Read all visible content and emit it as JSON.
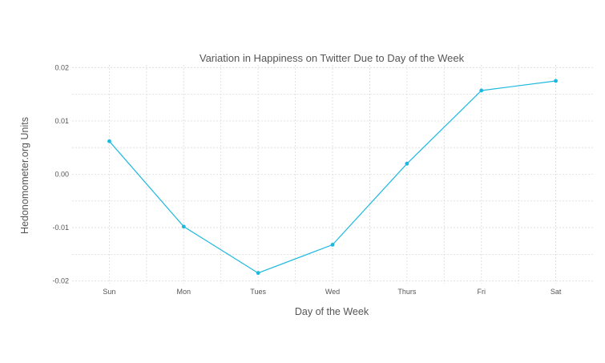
{
  "chart_data": {
    "type": "line",
    "title": "Variation in Happiness on Twitter Due to Day of the Week",
    "xlabel": "Day of the Week",
    "ylabel": "Hedonomometer.org Units",
    "categories": [
      "Sun",
      "Mon",
      "Tues",
      "Wed",
      "Thurs",
      "Fri",
      "Sat"
    ],
    "series": [
      {
        "values": [
          0.0062,
          -0.0098,
          -0.0185,
          -0.0132,
          0.002,
          0.0157,
          0.0175
        ]
      }
    ],
    "ylim": [
      -0.0205,
      0.0205
    ],
    "yticks": [
      -0.02,
      -0.01,
      0.0,
      0.01,
      0.02
    ],
    "ytick_labels": [
      "-0.02",
      "-0.01",
      "0.00",
      "0.01",
      "0.02"
    ],
    "grid": true,
    "legend": "none",
    "colors": {
      "series": "#1cb8e0",
      "grid": "#dcdcdc",
      "text": "#555555"
    }
  }
}
